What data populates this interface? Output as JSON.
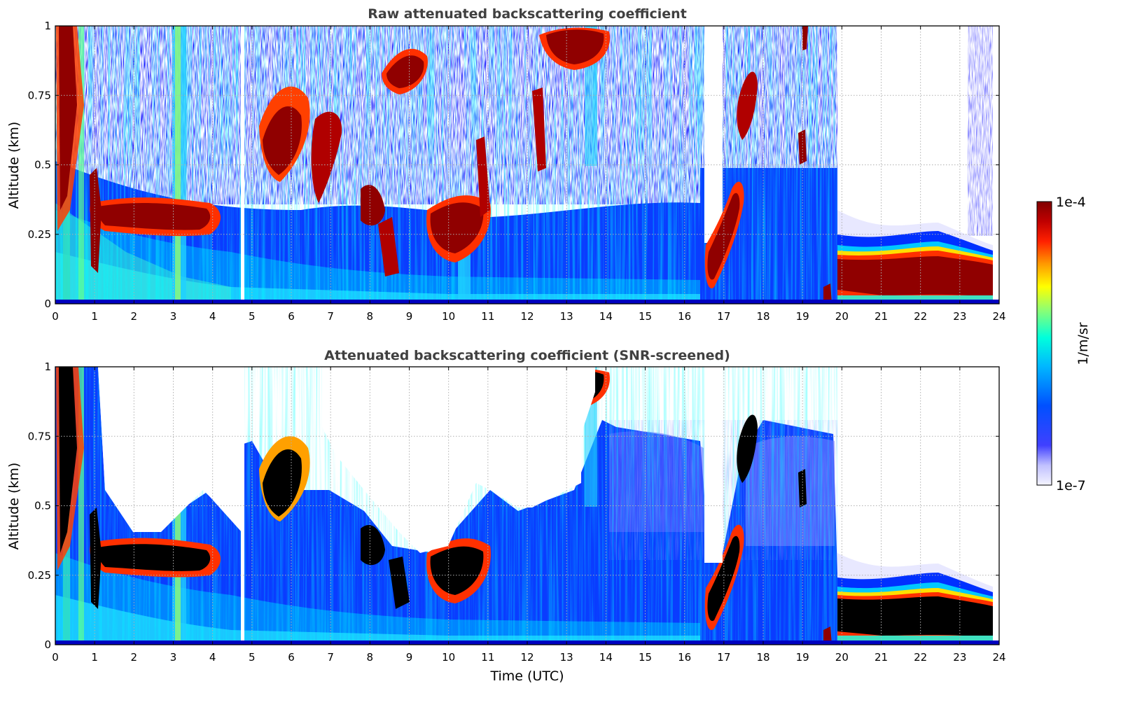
{
  "figure": {
    "colorbar": {
      "max_label": "1e-4",
      "min_label": "1e-7",
      "unit_label": "1/m/sr",
      "colormap": [
        "#ffffff",
        "#e6e6ff",
        "#0000ff",
        "#00ffff",
        "#ffff00",
        "#ff0000",
        "#800000"
      ]
    }
  },
  "chart_data": [
    {
      "type": "heatmap",
      "title": "Raw attenuated backscattering coefficient",
      "xlabel": "",
      "ylabel": "Altitude (km)",
      "xlim": [
        0,
        24
      ],
      "ylim": [
        0,
        1
      ],
      "xticks": [
        "0",
        "1",
        "2",
        "3",
        "4",
        "5",
        "6",
        "7",
        "8",
        "9",
        "10",
        "11",
        "12",
        "13",
        "14",
        "15",
        "16",
        "17",
        "18",
        "19",
        "20",
        "21",
        "22",
        "23",
        "24"
      ],
      "yticks": [
        "0",
        "0.25",
        "0.5",
        "0.75",
        "1"
      ],
      "grid": true,
      "colorbar_range": [
        "1e-7",
        "1e-4"
      ],
      "features": [
        {
          "description": "noisy signal aloft",
          "time_range": [
            0,
            19.9
          ],
          "altitude_range": [
            0.5,
            1.0
          ]
        },
        {
          "description": "boundary layer cloud",
          "time_range": [
            1.0,
            4.4
          ],
          "altitude_range": [
            0.18,
            0.38
          ]
        },
        {
          "description": "cloud layer",
          "time_range": [
            20.0,
            23.8
          ],
          "altitude_range": [
            0.02,
            0.18
          ]
        },
        {
          "description": "no data",
          "time_range": [
            19.9,
            24.0
          ],
          "altitude_range": [
            0.25,
            1.0
          ]
        }
      ]
    },
    {
      "type": "heatmap",
      "title": "Attenuated backscattering coefficient (SNR-screened)",
      "xlabel": "Time (UTC)",
      "ylabel": "Altitude (km)",
      "xlim": [
        0,
        24
      ],
      "ylim": [
        0,
        1
      ],
      "xticks": [
        "0",
        "1",
        "2",
        "3",
        "4",
        "5",
        "6",
        "7",
        "8",
        "9",
        "10",
        "11",
        "12",
        "13",
        "14",
        "15",
        "16",
        "17",
        "18",
        "19",
        "20",
        "21",
        "22",
        "23",
        "24"
      ],
      "yticks": [
        "0",
        "0.25",
        "0.5",
        "0.75",
        "1"
      ],
      "grid": true,
      "colorbar_range": [
        "1e-7",
        "1e-4"
      ],
      "features": [
        {
          "description": "screened-out noise",
          "time_range": [
            0,
            24
          ],
          "altitude_range": [
            0.5,
            1.0
          ]
        },
        {
          "description": "saturated cloud returns",
          "time_range": [
            20.0,
            23.8
          ],
          "altitude_range": [
            0.02,
            0.18
          ]
        }
      ]
    }
  ]
}
